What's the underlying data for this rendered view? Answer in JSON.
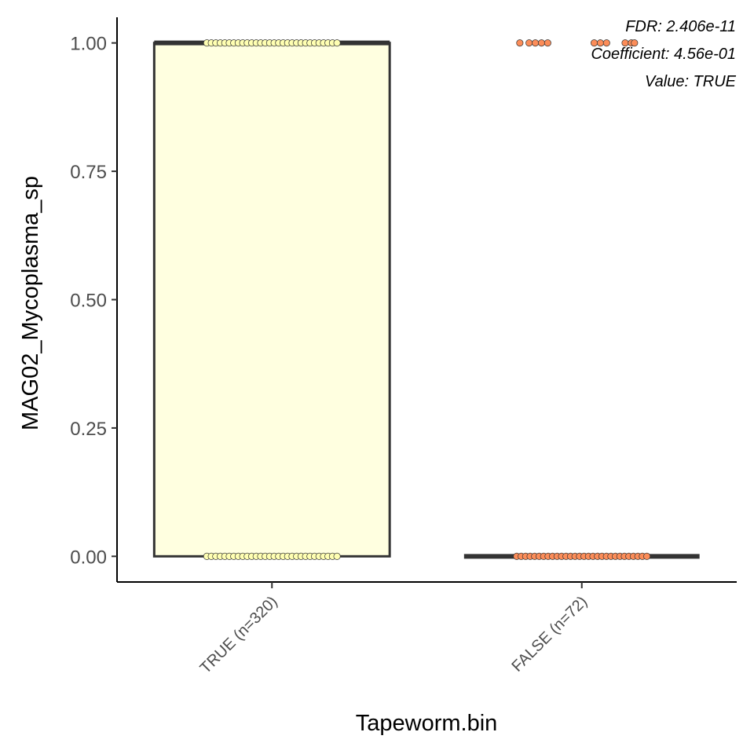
{
  "chart_data": {
    "type": "box",
    "xlabel": "Tapeworm.bin",
    "ylabel": "MAG02_Mycoplasma_sp",
    "categories": [
      "TRUE (n=320)",
      "FALSE (n=72)"
    ],
    "yticks": [
      "0.00",
      "0.25",
      "0.50",
      "0.75",
      "1.00"
    ],
    "ytick_values": [
      0,
      0.25,
      0.5,
      0.75,
      1
    ],
    "ylim": [
      -0.05,
      1.05
    ],
    "grid": false,
    "boxes": [
      {
        "category": "TRUE (n=320)",
        "q1": 0,
        "median": 1,
        "q3": 1,
        "whisker_low": 0,
        "whisker_high": 1,
        "fill": "#ffffe0"
      },
      {
        "category": "FALSE (n=72)",
        "q1": 0,
        "median": 0,
        "q3": 0,
        "whisker_low": 0,
        "whisker_high": 0,
        "fill": "#ffffe0"
      }
    ],
    "points": [
      {
        "category": "TRUE (n=320)",
        "y_values": [
          0,
          1
        ],
        "color": "#ffffb2",
        "jitter_width": 0.21
      },
      {
        "category": "FALSE (n=72)",
        "y_values": [
          0
        ],
        "color": "#fc8d59",
        "jitter_width": 0.21
      }
    ],
    "outliers": [
      {
        "category": "FALSE (n=72)",
        "y": 1,
        "offsets": [
          -0.2,
          -0.17,
          -0.15,
          -0.13,
          -0.11,
          0.04,
          0.06,
          0.08,
          0.14,
          0.16,
          0.17
        ],
        "color": "#fc8d59"
      }
    ],
    "annotations": [
      "FDR: 2.406e-11",
      "Coefficient: 4.56e-01",
      "Value: TRUE"
    ]
  }
}
